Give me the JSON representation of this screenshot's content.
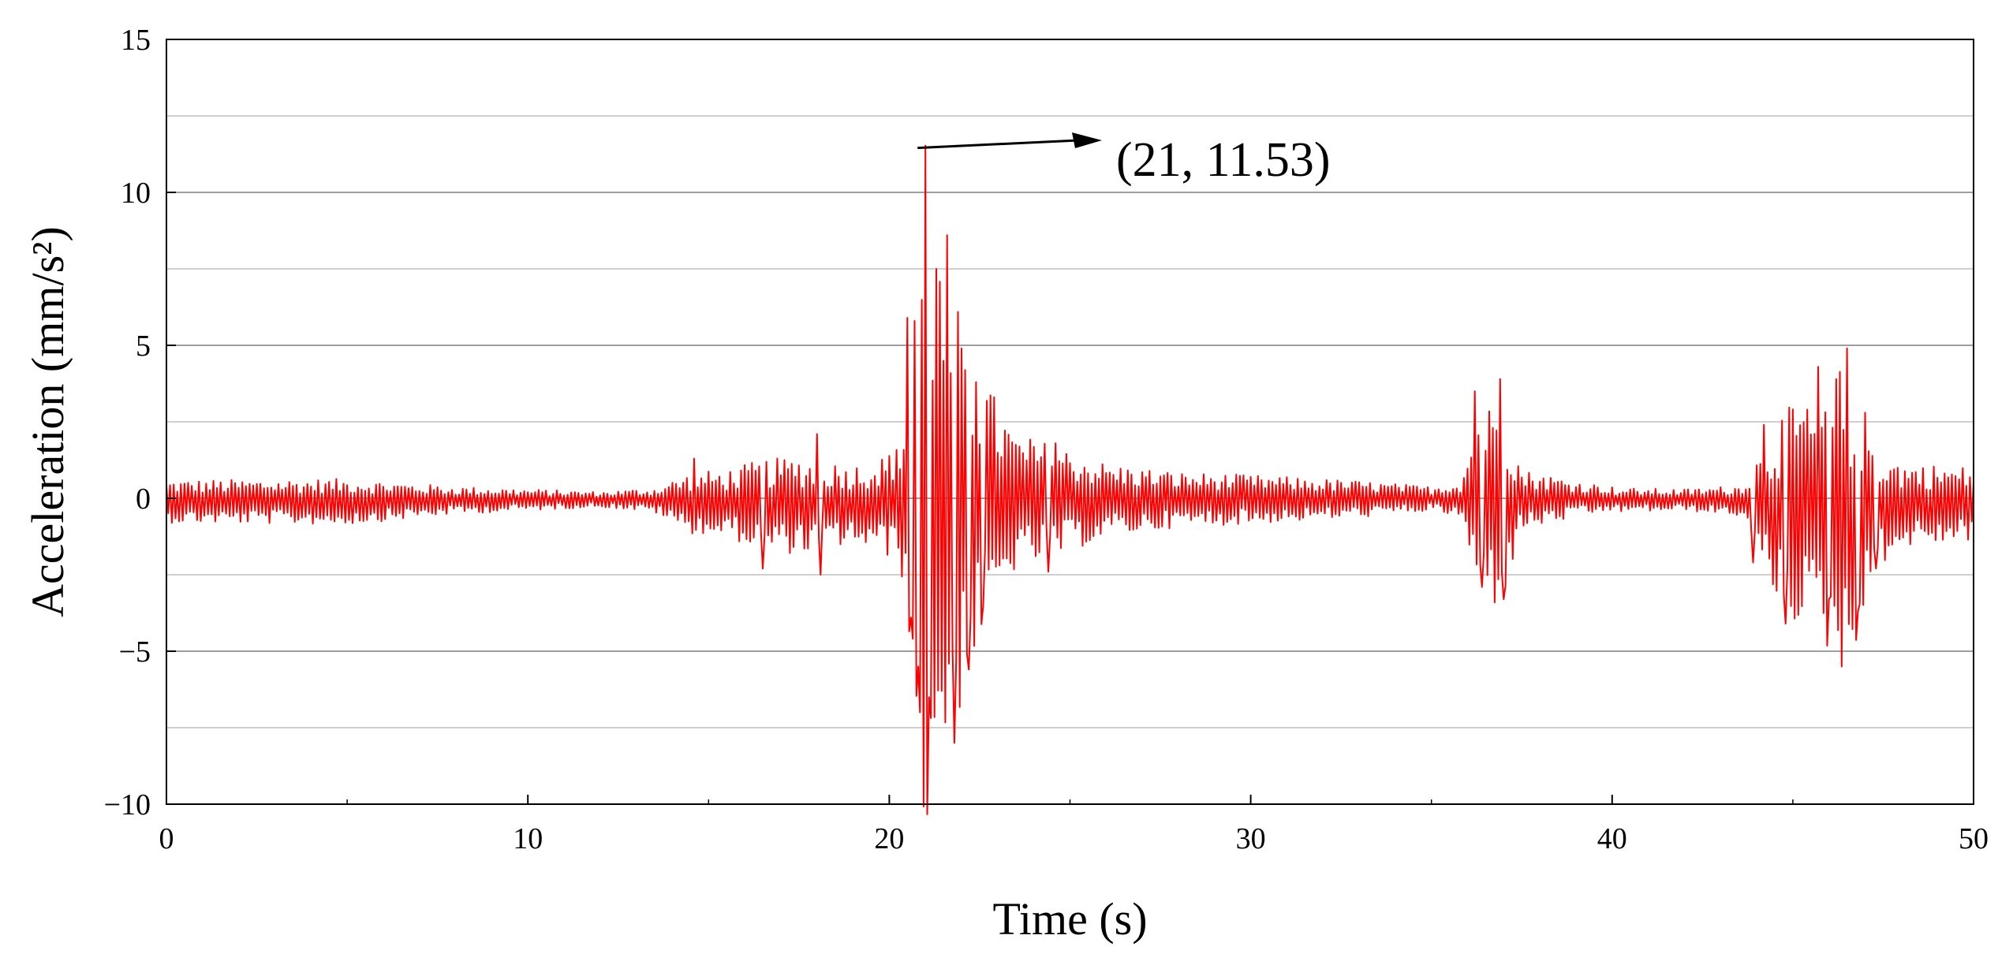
{
  "chart_data": {
    "type": "line",
    "title": "",
    "xlabel": "Time (s)",
    "ylabel": "Acceleration (mm/s²)",
    "xlim": [
      0,
      50
    ],
    "ylim": [
      -10,
      15
    ],
    "x_ticks": [
      0,
      10,
      20,
      30,
      40,
      50
    ],
    "x_tick_labels": [
      "0",
      "10",
      "20",
      "30",
      "40",
      "50"
    ],
    "y_ticks": [
      -10,
      -5,
      0,
      5,
      10,
      15
    ],
    "y_tick_labels": [
      "−10",
      "−5",
      "0",
      "5",
      "10",
      "15"
    ],
    "y_gridlines": [
      -7.5,
      -5,
      -2.5,
      0,
      2.5,
      5,
      7.5,
      10,
      12.5
    ],
    "grid": true,
    "legend": "none",
    "series_color": "#ff0000",
    "annotation": {
      "text": "(21, 11.53)",
      "point": {
        "x": 21,
        "y": 11.53
      }
    },
    "sample_interval": 0.05,
    "envelope_keypoints": [
      [
        0,
        0.7
      ],
      [
        5,
        0.75
      ],
      [
        8,
        0.45
      ],
      [
        10,
        0.35
      ],
      [
        12,
        0.25
      ],
      [
        13.5,
        0.4
      ],
      [
        14.5,
        1.0
      ],
      [
        15.5,
        1.1
      ],
      [
        16.5,
        1.5
      ],
      [
        17.5,
        1.6
      ],
      [
        19,
        1.3
      ],
      [
        20.3,
        1.8
      ],
      [
        20.6,
        6.0
      ],
      [
        21.0,
        11.0
      ],
      [
        21.5,
        8.0
      ],
      [
        22.0,
        6.5
      ],
      [
        22.5,
        4.5
      ],
      [
        23.5,
        2.2
      ],
      [
        24.5,
        1.9
      ],
      [
        26,
        1.2
      ],
      [
        28,
        0.9
      ],
      [
        30,
        0.8
      ],
      [
        33,
        0.6
      ],
      [
        35,
        0.4
      ],
      [
        35.8,
        0.6
      ],
      [
        36.3,
        3.0
      ],
      [
        36.9,
        3.5
      ],
      [
        37.5,
        1.0
      ],
      [
        39,
        0.6
      ],
      [
        40,
        0.4
      ],
      [
        42,
        0.35
      ],
      [
        43.5,
        0.5
      ],
      [
        44.2,
        2.0
      ],
      [
        44.8,
        3.5
      ],
      [
        45.5,
        3.5
      ],
      [
        46.3,
        5.0
      ],
      [
        46.8,
        4.0
      ],
      [
        47.3,
        2.0
      ],
      [
        48,
        1.4
      ],
      [
        50,
        1.2
      ]
    ],
    "features": [
      {
        "t": 20.5,
        "v": 5.9
      },
      {
        "t": 20.6,
        "v": -3.9
      },
      {
        "t": 20.7,
        "v": 5.8
      },
      {
        "t": 20.8,
        "v": -5.5
      },
      {
        "t": 20.85,
        "v": -7.0
      },
      {
        "t": 21.0,
        "v": 11.53
      },
      {
        "t": 21.1,
        "v": -6.5
      },
      {
        "t": 21.3,
        "v": 7.5
      },
      {
        "t": 21.45,
        "v": -6.3
      },
      {
        "t": 21.6,
        "v": 8.6
      },
      {
        "t": 21.8,
        "v": -8.0
      },
      {
        "t": 22.0,
        "v": 4.9
      },
      {
        "t": 22.2,
        "v": -5.6
      },
      {
        "t": 22.4,
        "v": 3.8
      },
      {
        "t": 22.6,
        "v": -3.5
      },
      {
        "t": 18.0,
        "v": 2.1
      },
      {
        "t": 18.1,
        "v": -2.5
      },
      {
        "t": 14.6,
        "v": 1.3
      },
      {
        "t": 16.5,
        "v": -2.3
      },
      {
        "t": 24.6,
        "v": 1.8
      },
      {
        "t": 24.4,
        "v": -2.4
      },
      {
        "t": 36.2,
        "v": 3.5
      },
      {
        "t": 36.4,
        "v": -2.9
      },
      {
        "t": 36.9,
        "v": 3.9
      },
      {
        "t": 37.0,
        "v": -3.3
      },
      {
        "t": 43.9,
        "v": -2.1
      },
      {
        "t": 44.2,
        "v": 2.4
      },
      {
        "t": 44.8,
        "v": -4.1
      },
      {
        "t": 45.4,
        "v": 2.9
      },
      {
        "t": 45.7,
        "v": 4.3
      },
      {
        "t": 46.0,
        "v": -3.3
      },
      {
        "t": 46.2,
        "v": 3.9
      },
      {
        "t": 46.35,
        "v": -5.5
      },
      {
        "t": 46.5,
        "v": 4.9
      },
      {
        "t": 46.8,
        "v": -3.7
      },
      {
        "t": 47.0,
        "v": 2.8
      },
      {
        "t": 47.3,
        "v": -2.3
      }
    ]
  }
}
